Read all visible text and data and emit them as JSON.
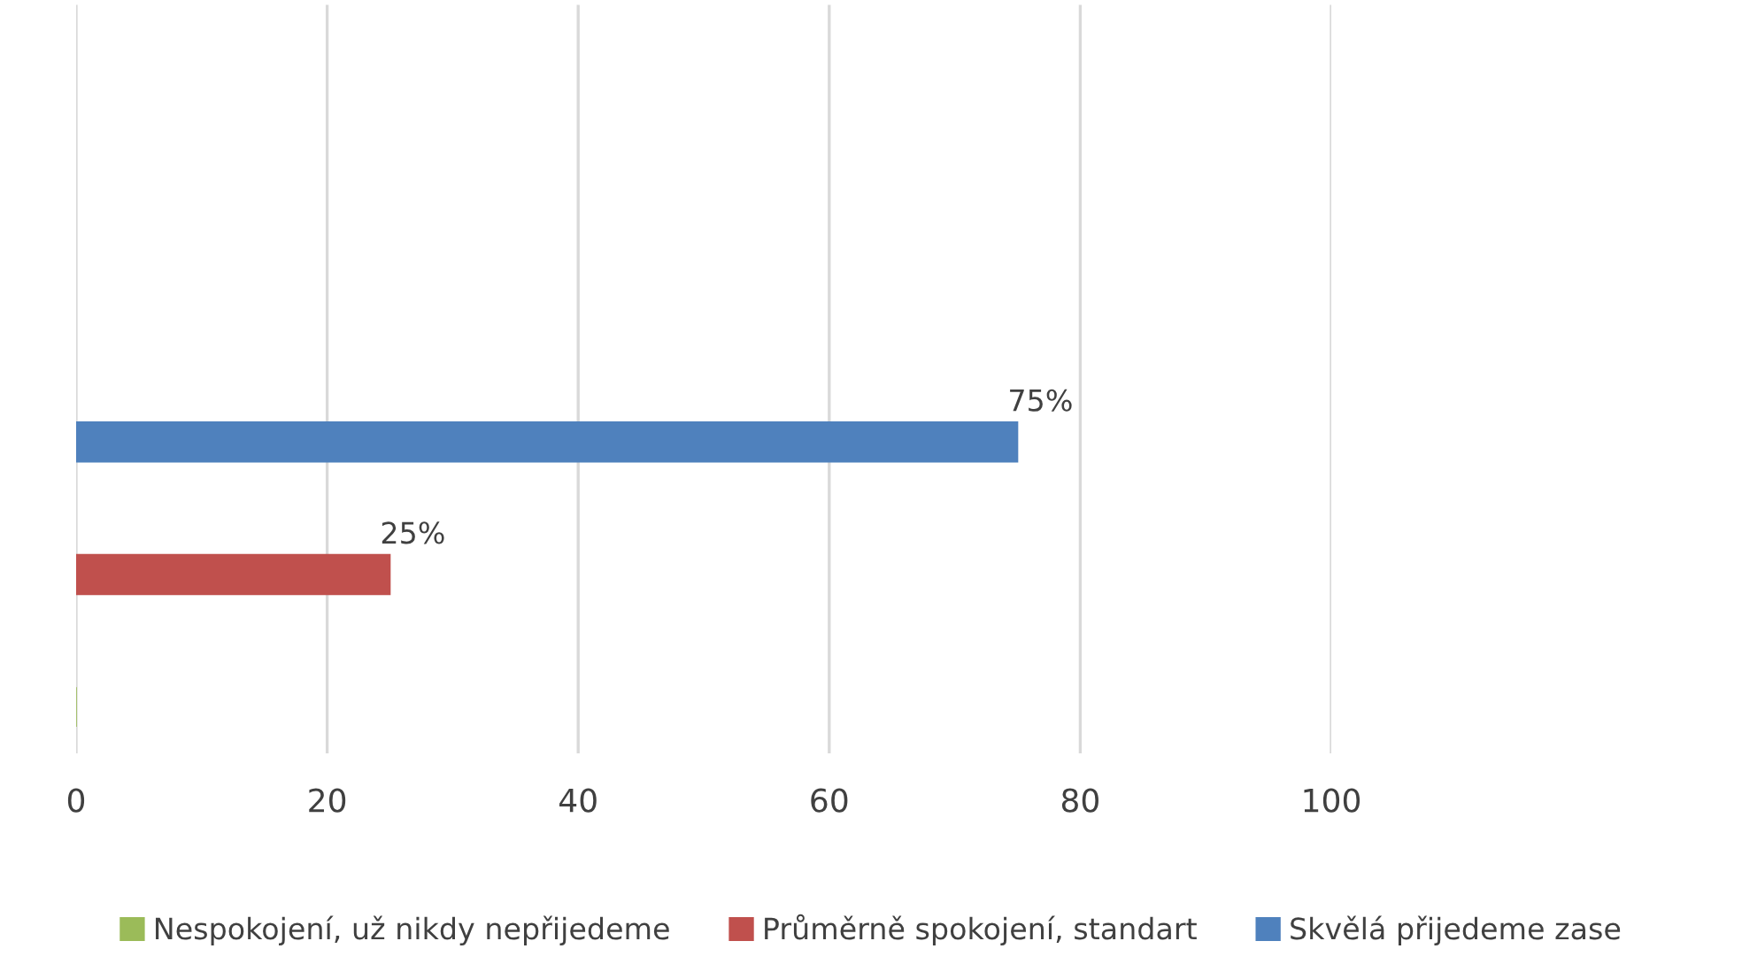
{
  "chart_data": {
    "type": "bar",
    "orientation": "horizontal",
    "categories": [
      null
    ],
    "series": [
      {
        "name": "Nespokojení, už nikdy nepřijedeme",
        "color": "#9bbb59",
        "values": [
          0
        ],
        "value_labels": [
          null
        ]
      },
      {
        "name": "Průměrně spokojení, standart",
        "color": "#c0504d",
        "values": [
          25
        ],
        "value_labels": [
          "25%"
        ]
      },
      {
        "name": "Skvělá přijedeme zase",
        "color": "#4f81bd",
        "values": [
          75
        ],
        "value_labels": [
          "75%"
        ]
      }
    ],
    "xlim": [
      0,
      100
    ],
    "xticks": [
      0,
      20,
      40,
      60,
      80,
      100
    ],
    "grid": "x",
    "legend": "bottom"
  }
}
